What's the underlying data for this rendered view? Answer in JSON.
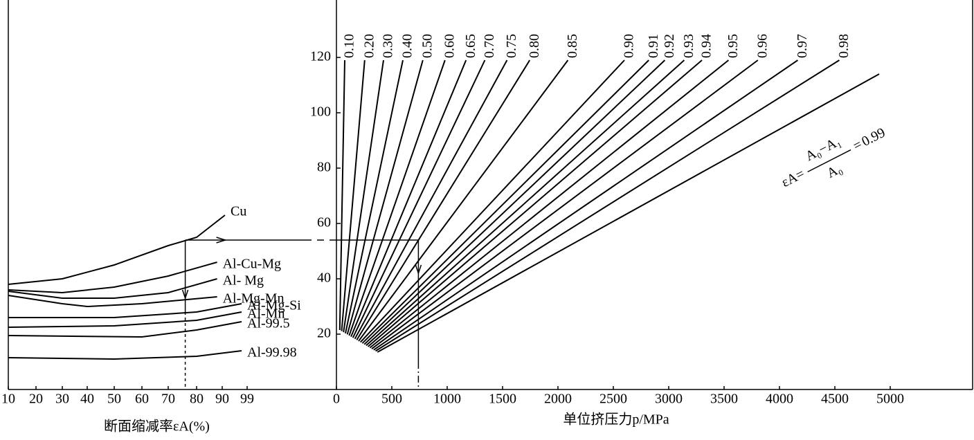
{
  "chart_data": [
    {
      "type": "line",
      "xlabel": "断面缩减率εA(%)",
      "xlim": [
        10,
        99
      ],
      "xticks": [
        10,
        20,
        30,
        40,
        50,
        60,
        70,
        80,
        90,
        99
      ],
      "series": [
        {
          "name": "Cu",
          "color": "#000000",
          "x": [
            10,
            30,
            50,
            70,
            80,
            91
          ],
          "y": [
            38,
            40,
            45,
            52,
            55,
            63
          ]
        },
        {
          "name": "Al-Cu-Mg",
          "color": "#000000",
          "x": [
            10,
            30,
            50,
            70,
            88
          ],
          "y": [
            36,
            35,
            37,
            41,
            46
          ]
        },
        {
          "name": "Al- Mg",
          "color": "#000000",
          "x": [
            10,
            30,
            50,
            70,
            88
          ],
          "y": [
            35.5,
            33,
            33,
            35,
            40
          ]
        },
        {
          "name": "Al-Mg-Mn",
          "color": "#000000",
          "x": [
            10,
            30,
            40,
            60,
            88
          ],
          "y": [
            34,
            31,
            30,
            31,
            33.5
          ]
        },
        {
          "name": "Al-Mg-Si",
          "color": "#000000",
          "x": [
            10,
            50,
            80,
            97
          ],
          "y": [
            26,
            26,
            28,
            31
          ]
        },
        {
          "name": "Al-Mn",
          "color": "#000000",
          "x": [
            10,
            50,
            80,
            97
          ],
          "y": [
            22.5,
            23,
            25,
            28
          ]
        },
        {
          "name": "Al-99.5",
          "color": "#000000",
          "x": [
            10,
            60,
            80,
            97
          ],
          "y": [
            19.5,
            19,
            21.5,
            24.5
          ]
        },
        {
          "name": "Al-99.98",
          "color": "#000000",
          "x": [
            10,
            50,
            80,
            97
          ],
          "y": [
            11.5,
            11,
            12,
            14
          ]
        }
      ],
      "example": {
        "epsilon": 76,
        "k": 54
      }
    },
    {
      "type": "line",
      "xlabel": "单位挤压力p/MPa",
      "xlim": [
        0,
        5750
      ],
      "xticks": [
        0,
        500,
        1000,
        1500,
        2000,
        2500,
        3000,
        3500,
        4000,
        4500,
        5000
      ],
      "ylim": [
        0,
        140
      ],
      "yticks": [
        20,
        40,
        60,
        80,
        100,
        120
      ],
      "formula": {
        "lhs": "εA=",
        "numerator": "A₀−A₁",
        "denominator": "A₀",
        "rhs": "="
      },
      "series": [
        {
          "name": "0.10",
          "x": [
            30,
            75
          ],
          "y": [
            21.5,
            119
          ]
        },
        {
          "name": "0.20",
          "x": [
            47,
            255
          ],
          "y": [
            21.1,
            119
          ]
        },
        {
          "name": "0.30",
          "x": [
            64,
            425
          ],
          "y": [
            20.7,
            119
          ]
        },
        {
          "name": "0.40",
          "x": [
            81,
            600
          ],
          "y": [
            20.3,
            119
          ]
        },
        {
          "name": "0.50",
          "x": [
            98,
            780
          ],
          "y": [
            19.9,
            119
          ]
        },
        {
          "name": "0.60",
          "x": [
            115,
            980
          ],
          "y": [
            19.5,
            119
          ]
        },
        {
          "name": "0.65",
          "x": [
            132,
            1170
          ],
          "y": [
            19.1,
            119
          ]
        },
        {
          "name": "0.70",
          "x": [
            149,
            1340
          ],
          "y": [
            18.7,
            119
          ]
        },
        {
          "name": "0.75",
          "x": [
            166,
            1540
          ],
          "y": [
            18.3,
            119
          ]
        },
        {
          "name": "0.80",
          "x": [
            183,
            1745
          ],
          "y": [
            17.9,
            119
          ]
        },
        {
          "name": "0.85",
          "x": [
            200,
            2090
          ],
          "y": [
            17.5,
            119
          ]
        },
        {
          "name": "0.90",
          "x": [
            217,
            2600
          ],
          "y": [
            17.1,
            119
          ]
        },
        {
          "name": "0.91",
          "x": [
            234,
            2820
          ],
          "y": [
            16.7,
            119
          ]
        },
        {
          "name": "0.92",
          "x": [
            251,
            2965
          ],
          "y": [
            16.3,
            119
          ]
        },
        {
          "name": "0.93",
          "x": [
            268,
            3140
          ],
          "y": [
            15.9,
            119
          ]
        },
        {
          "name": "0.94",
          "x": [
            285,
            3300
          ],
          "y": [
            15.5,
            119
          ]
        },
        {
          "name": "0.95",
          "x": [
            302,
            3540
          ],
          "y": [
            15.1,
            119
          ]
        },
        {
          "name": "0.96",
          "x": [
            319,
            3805
          ],
          "y": [
            14.7,
            119
          ]
        },
        {
          "name": "0.97",
          "x": [
            336,
            4165
          ],
          "y": [
            14.3,
            119
          ]
        },
        {
          "name": "0.98",
          "x": [
            353,
            4540
          ],
          "y": [
            13.9,
            119
          ]
        },
        {
          "name": "0.99",
          "x": [
            370,
            4900
          ],
          "y": [
            13.5,
            114
          ]
        }
      ],
      "example": {
        "p": 740
      }
    }
  ]
}
